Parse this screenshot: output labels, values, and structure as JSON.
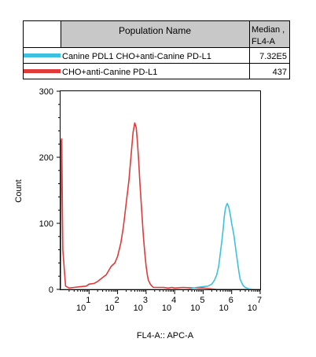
{
  "legend_table": {
    "header_population": "Population Name",
    "header_median": "Median ,\nFL4-A",
    "rows": [
      {
        "name": "Canine PDL1 CHO+anti-Canine PD-L1",
        "median": "7.32E5",
        "color": "#3cc1e0"
      },
      {
        "name": "CHO+anti-Canine PD-L1",
        "median": "437",
        "color": "#e03a3a"
      }
    ]
  },
  "chart_data": {
    "type": "line",
    "title": "",
    "xlabel": "FL4-A:: APC-A",
    "ylabel": "Count",
    "x_scale": "log",
    "xlim": [
      1,
      10000000
    ],
    "ylim": [
      0,
      300
    ],
    "y_ticks": [
      0,
      100,
      200,
      300
    ],
    "x_ticks": [
      {
        "value": 10,
        "base": "10",
        "exp": "1"
      },
      {
        "value": 100,
        "base": "10",
        "exp": "2"
      },
      {
        "value": 1000,
        "base": "10",
        "exp": "3"
      },
      {
        "value": 10000,
        "base": "10",
        "exp": "4"
      },
      {
        "value": 100000,
        "base": "10",
        "exp": "5"
      },
      {
        "value": 1000000,
        "base": "10",
        "exp": "6"
      },
      {
        "value": 10000000,
        "base": "10",
        "exp": "7"
      }
    ],
    "grid": false,
    "series": [
      {
        "name": "CHO+anti-Canine PD-L1",
        "color": "#e03a3a",
        "x": [
          1,
          1.05,
          1.1,
          1.2,
          1.5,
          2,
          3,
          5,
          8,
          10,
          15,
          20,
          30,
          40,
          60,
          80,
          100,
          130,
          160,
          200,
          250,
          300,
          350,
          400,
          450,
          500,
          550,
          600,
          700,
          800,
          900,
          1000,
          1100,
          1200,
          1400,
          1600,
          1800,
          2000,
          2500,
          3000,
          4000,
          6000,
          8000,
          10000,
          20000,
          50000,
          100000,
          300000,
          1000000,
          10000000
        ],
        "y": [
          0,
          225,
          228,
          60,
          5,
          2,
          3,
          4,
          5,
          8,
          9,
          12,
          18,
          22,
          35,
          40,
          50,
          70,
          95,
          130,
          165,
          205,
          238,
          252,
          245,
          222,
          195,
          165,
          120,
          82,
          55,
          35,
          22,
          14,
          8,
          5,
          3,
          3,
          3,
          3,
          3,
          2,
          3,
          2,
          3,
          2,
          2,
          0,
          0,
          0
        ]
      },
      {
        "name": "Canine PDL1 CHO+anti-Canine PD-L1",
        "color": "#3cc1e0",
        "x": [
          1,
          10,
          100,
          1000,
          10000,
          30000,
          60000,
          100000,
          150000,
          200000,
          250000,
          300000,
          350000,
          400000,
          450000,
          500000,
          550000,
          600000,
          650000,
          700000,
          800000,
          900000,
          1000000,
          1200000,
          1400000,
          1600000,
          1800000,
          2000000,
          2500000,
          3000000,
          4000000,
          6000000,
          10000000
        ],
        "y": [
          0,
          0,
          0,
          0,
          0,
          0,
          3,
          4,
          5,
          8,
          14,
          22,
          35,
          55,
          72,
          90,
          110,
          122,
          127,
          130,
          124,
          112,
          100,
          82,
          60,
          42,
          26,
          15,
          6,
          3,
          1,
          0,
          0
        ]
      }
    ]
  }
}
